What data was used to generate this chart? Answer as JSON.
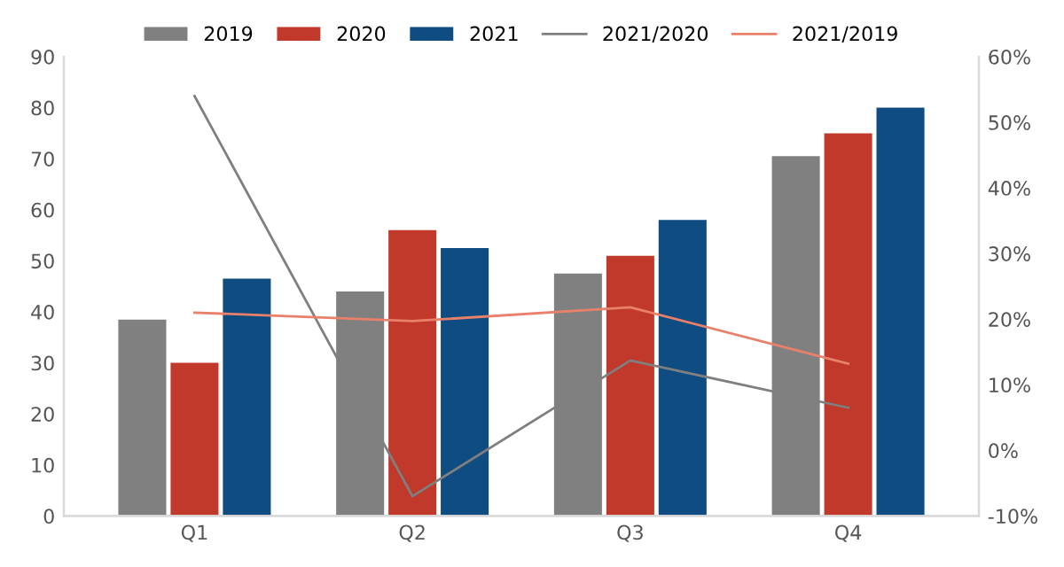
{
  "chart_data": {
    "type": "bar",
    "categories": [
      "Q1",
      "Q2",
      "Q3",
      "Q4"
    ],
    "series": [
      {
        "name": "2019",
        "color": "#808080",
        "values": [
          38.5,
          44,
          47.5,
          70.5
        ]
      },
      {
        "name": "2020",
        "color": "#c0392b",
        "values": [
          30,
          56,
          51,
          75
        ]
      },
      {
        "name": "2021",
        "color": "#0f4c81",
        "values": [
          46.5,
          52.5,
          58,
          80
        ]
      },
      {
        "name": "2021/2020",
        "type": "line",
        "axis": "y2",
        "color": "#7f7f7f",
        "values": [
          54,
          -7,
          13.7,
          6.5
        ]
      },
      {
        "name": "2021/2019",
        "type": "line",
        "axis": "y2",
        "color": "#e8806a",
        "values": [
          21,
          19.7,
          21.8,
          13.2
        ]
      }
    ],
    "ylim": [
      0,
      90
    ],
    "yticks": [
      0,
      10,
      20,
      30,
      40,
      50,
      60,
      70,
      80,
      90
    ],
    "y2lim": [
      -10,
      60
    ],
    "y2ticks": [
      {
        "value": -10,
        "label": "-10%"
      },
      {
        "value": 0,
        "label": "0%"
      },
      {
        "value": 10,
        "label": "10%"
      },
      {
        "value": 20,
        "label": "20%"
      },
      {
        "value": 30,
        "label": "30%"
      },
      {
        "value": 40,
        "label": "40%"
      },
      {
        "value": 50,
        "label": "50%"
      },
      {
        "value": 60,
        "label": "60%"
      }
    ],
    "grid": false,
    "legend": "top",
    "marker": "none",
    "line_style": "solid"
  }
}
